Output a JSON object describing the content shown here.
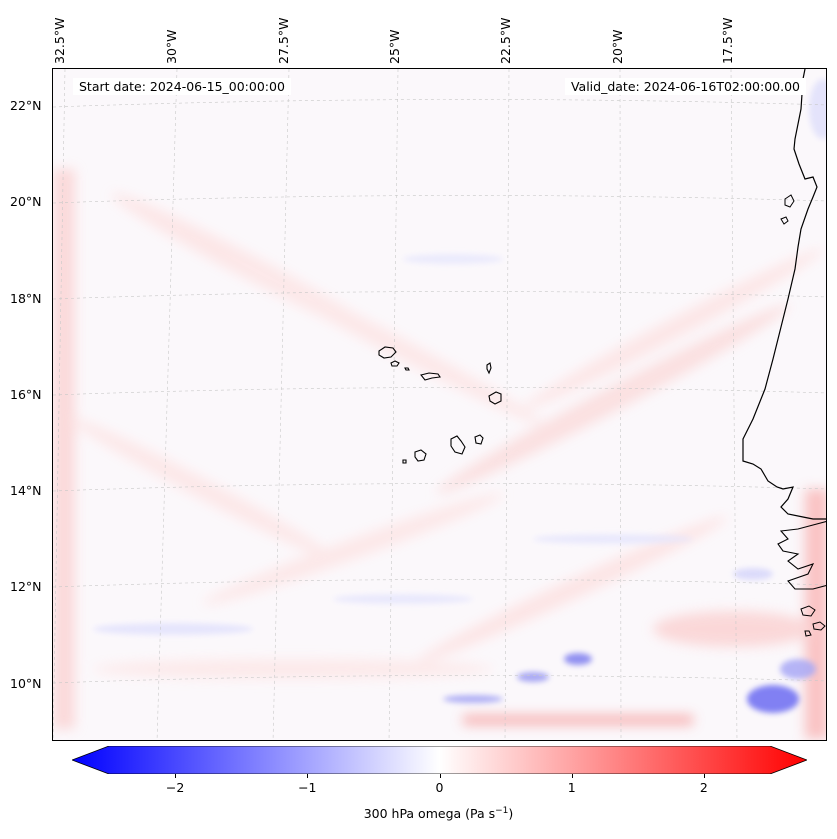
{
  "map": {
    "start_date_text": "Start date: 2024-06-15_00:00:00",
    "valid_date_text": "Valid_date: 2024-06-16T02:00:00.00",
    "lon_labels": [
      "32.5°W",
      "30°W",
      "27.5°W",
      "25°W",
      "22.5°W",
      "20°W",
      "17.5°W"
    ],
    "lat_labels": [
      "22°N",
      "20°N",
      "18°N",
      "16°N",
      "14°N",
      "12°N",
      "10°N"
    ],
    "coastline_color": "#000000",
    "grid_color": "#c8c8c8"
  },
  "colorbar": {
    "ticks": [
      "−2",
      "−1",
      "0",
      "1",
      "2"
    ],
    "tick_values": [
      -2,
      -1,
      0,
      1,
      2
    ],
    "range": [
      -2.5,
      2.5
    ],
    "label": "300 hPa omega (Pa s",
    "label_sup": "−1",
    "label_tail": ")",
    "colormap": "bwr",
    "min_color": "#0000ff",
    "mid_color": "#ffffff",
    "max_color": "#ff0000"
  }
}
